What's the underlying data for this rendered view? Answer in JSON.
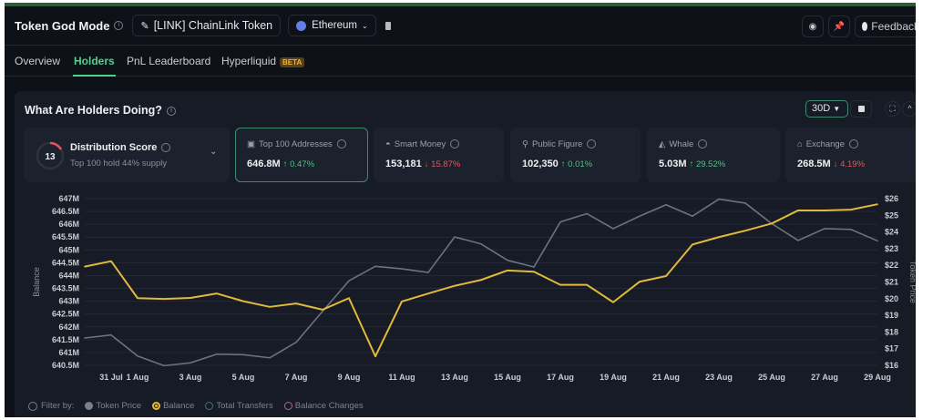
{
  "header": {
    "title": "Token God Mode",
    "token": "[LINK] ChainLink Token",
    "chain": "Ethereum",
    "feedback": "Feedback"
  },
  "tabs": [
    {
      "label": "Overview"
    },
    {
      "label": "Holders",
      "active": true
    },
    {
      "label": "PnL Leaderboard"
    },
    {
      "label": "Hyperliquid",
      "badge": "BETA"
    }
  ],
  "panel": {
    "title": "What Are Holders Doing?",
    "range": "30D"
  },
  "distribution": {
    "score": "13",
    "label": "Distribution Score",
    "sub": "Top 100 hold 44% supply"
  },
  "cards": [
    {
      "label": "Top 100 Addresses",
      "value": "646.8M",
      "change": "↑ 0.47%",
      "dir": "up",
      "icon": "wallet-icon"
    },
    {
      "label": "Smart Money",
      "value": "153,181",
      "change": "↓ 15.87%",
      "dir": "down",
      "icon": "brain-icon"
    },
    {
      "label": "Public Figure",
      "value": "102,350",
      "change": "↑ 0.01%",
      "dir": "up",
      "icon": "person-icon"
    },
    {
      "label": "Whale",
      "value": "5.03M",
      "change": "↑ 29.52%",
      "dir": "up",
      "icon": "whale-icon"
    },
    {
      "label": "Exchange",
      "value": "268.5M",
      "change": "↓ 4.19%",
      "dir": "down",
      "icon": "bank-icon"
    }
  ],
  "legend": {
    "prefix": "Filter by:",
    "items": [
      "Token Price",
      "Balance",
      "Total Transfers",
      "Balance Changes"
    ]
  },
  "chart_data": {
    "type": "line",
    "xlabel": "",
    "ylabel": "Balance",
    "y2label": "Token Price",
    "x": [
      "30 Jul",
      "31 Jul",
      "1 Aug",
      "2 Aug",
      "3 Aug",
      "4 Aug",
      "5 Aug",
      "6 Aug",
      "7 Aug",
      "8 Aug",
      "9 Aug",
      "10 Aug",
      "11 Aug",
      "12 Aug",
      "13 Aug",
      "14 Aug",
      "15 Aug",
      "16 Aug",
      "17 Aug",
      "18 Aug",
      "19 Aug",
      "20 Aug",
      "21 Aug",
      "22 Aug",
      "23 Aug",
      "24 Aug",
      "25 Aug",
      "26 Aug",
      "27 Aug",
      "28 Aug",
      "29 Aug"
    ],
    "xtick_labels": [
      "31 Jul",
      "1 Aug",
      "3 Aug",
      "5 Aug",
      "7 Aug",
      "9 Aug",
      "11 Aug",
      "13 Aug",
      "15 Aug",
      "17 Aug",
      "19 Aug",
      "21 Aug",
      "23 Aug",
      "25 Aug",
      "27 Aug",
      "29 Aug"
    ],
    "ylim": [
      640.5,
      647
    ],
    "y2lim": [
      16,
      26
    ],
    "yticks": [
      "640.5M",
      "641M",
      "641.5M",
      "642M",
      "642.5M",
      "643M",
      "643.5M",
      "644M",
      "644.5M",
      "645M",
      "645.5M",
      "646M",
      "646.5M",
      "647M"
    ],
    "y2ticks": [
      "$16",
      "$17",
      "$18",
      "$19",
      "$20",
      "$21",
      "$22",
      "$23",
      "$24",
      "$25",
      "$26"
    ],
    "series": [
      {
        "name": "Balance",
        "axis": "left",
        "unit": "M",
        "color": "#e2b93b",
        "values": [
          644.35,
          644.56,
          643.12,
          643.09,
          643.13,
          643.3,
          643.0,
          642.78,
          642.91,
          642.67,
          643.12,
          640.85,
          642.99,
          643.3,
          643.6,
          643.83,
          644.2,
          644.15,
          643.64,
          643.64,
          642.96,
          643.76,
          643.98,
          645.21,
          645.5,
          645.75,
          646.03,
          646.54,
          646.54,
          646.57,
          646.78
        ]
      },
      {
        "name": "Token Price",
        "axis": "right",
        "unit": "$",
        "color": "#6b7380",
        "values": [
          17.64,
          17.82,
          16.56,
          15.98,
          16.15,
          16.67,
          16.64,
          16.45,
          17.38,
          19.24,
          21.07,
          21.94,
          21.79,
          21.57,
          23.7,
          23.28,
          22.3,
          21.9,
          24.6,
          25.1,
          24.2,
          24.95,
          25.63,
          24.95,
          25.97,
          25.73,
          24.5,
          23.49,
          24.2,
          24.15,
          23.47
        ]
      }
    ],
    "grid": true
  }
}
